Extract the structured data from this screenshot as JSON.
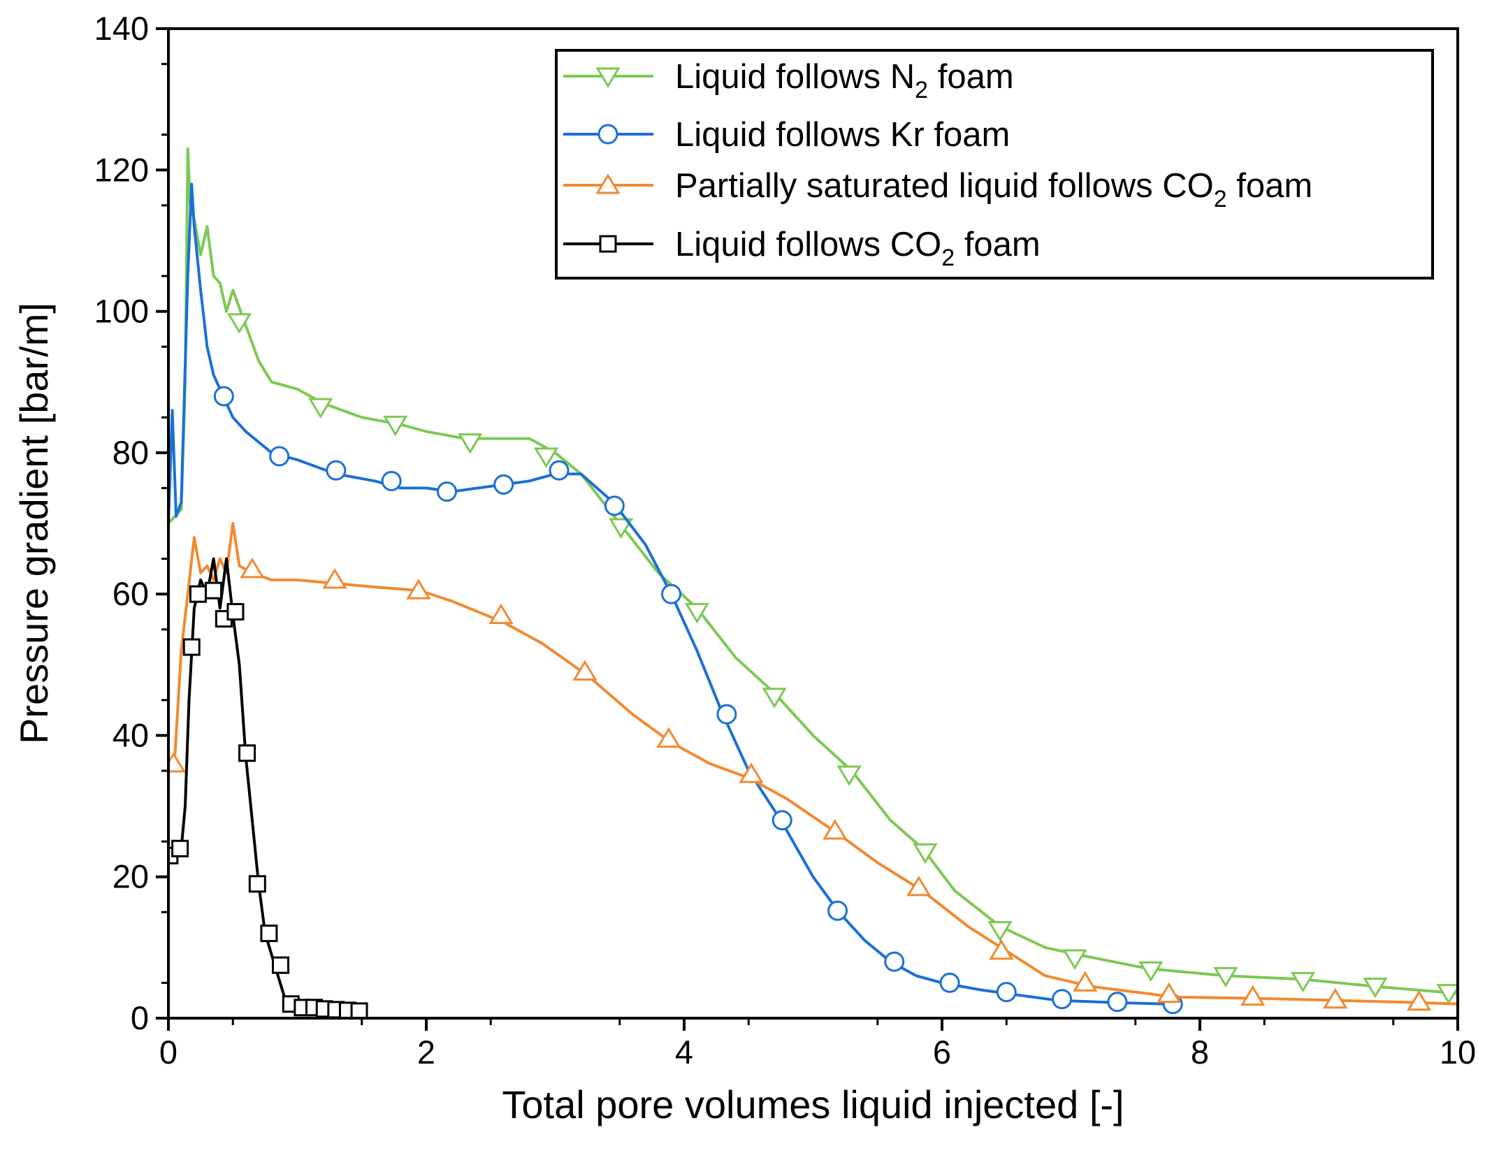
{
  "chart_data": {
    "type": "line",
    "title": "",
    "xlabel": "Total pore volumes liquid injected [-]",
    "ylabel": "Pressure gradient [bar/m]",
    "xlim": [
      0,
      10
    ],
    "ylim": [
      0,
      140
    ],
    "xticks": [
      0,
      2,
      4,
      6,
      8,
      10
    ],
    "yticks": [
      0,
      20,
      40,
      60,
      80,
      100,
      120,
      140
    ],
    "xtick_labels": [
      "0",
      "2",
      "4",
      "6",
      "8",
      "10"
    ],
    "ytick_labels": [
      "0",
      "20",
      "40",
      "60",
      "80",
      "100",
      "120",
      "140"
    ],
    "grid": false,
    "legend_position": "top-right",
    "series": [
      {
        "name": "Liquid follows N2 foam",
        "label_main": "Liquid follows N",
        "label_sub": "2",
        "label_tail": " foam",
        "color": "#7cc954",
        "marker": "triangle-down",
        "x": [
          0,
          0.05,
          0.1,
          0.13,
          0.15,
          0.17,
          0.2,
          0.25,
          0.3,
          0.35,
          0.4,
          0.45,
          0.5,
          0.6,
          0.7,
          0.8,
          1.0,
          1.2,
          1.5,
          1.8,
          2.0,
          2.3,
          2.6,
          2.8,
          3.0,
          3.2,
          3.5,
          3.8,
          4.1,
          4.4,
          4.7,
          5.0,
          5.3,
          5.6,
          5.85,
          6.1,
          6.45,
          6.8,
          7.05,
          7.6,
          8.2,
          8.8,
          9.35,
          10.0
        ],
        "y": [
          70,
          71,
          72,
          90,
          123,
          115,
          113,
          108,
          112,
          105,
          104,
          100,
          103,
          98,
          93,
          90,
          89,
          87,
          85,
          84,
          83,
          82,
          82,
          82,
          80,
          77,
          70,
          63,
          58,
          51,
          46,
          40,
          35,
          28,
          24,
          18,
          13,
          10,
          9,
          7,
          6,
          5.5,
          4.5,
          3.5
        ],
        "marker_x": [
          0.55,
          1.18,
          1.76,
          2.34,
          2.93,
          3.51,
          4.1,
          4.7,
          5.28,
          5.87,
          6.45,
          7.03,
          7.62,
          8.2,
          8.8,
          9.36,
          9.93
        ],
        "marker_y": [
          98.5,
          86.5,
          84,
          81.5,
          79.5,
          69.5,
          57.5,
          45.5,
          34.5,
          23.5,
          12.5,
          8.5,
          6.8,
          6.0,
          5.3,
          4.5,
          3.6
        ]
      },
      {
        "name": "Liquid follows Kr foam",
        "label_main": "Liquid follows Kr foam",
        "label_sub": "",
        "label_tail": "",
        "color": "#1a70d6",
        "marker": "circle",
        "x": [
          0,
          0.03,
          0.06,
          0.1,
          0.15,
          0.18,
          0.2,
          0.25,
          0.3,
          0.35,
          0.4,
          0.5,
          0.6,
          0.8,
          1.0,
          1.3,
          1.6,
          1.8,
          2.0,
          2.2,
          2.4,
          2.6,
          2.8,
          3.0,
          3.2,
          3.45,
          3.7,
          3.9,
          4.1,
          4.3,
          4.5,
          4.75,
          5.0,
          5.2,
          5.4,
          5.6,
          5.8,
          6.0,
          6.3,
          6.5,
          6.9,
          7.35,
          7.76
        ],
        "y": [
          70,
          86,
          71,
          73,
          105,
          118,
          112,
          103,
          95,
          91,
          89,
          85,
          83,
          80,
          79,
          77,
          76,
          75,
          75,
          74.5,
          75,
          75.5,
          76,
          77,
          77,
          73,
          67,
          60,
          52,
          43,
          35,
          28,
          20,
          15,
          11,
          8,
          6,
          5,
          4,
          3.5,
          2.5,
          2.2,
          2.0
        ],
        "marker_x": [
          0.43,
          0.86,
          1.3,
          1.73,
          2.16,
          2.6,
          3.03,
          3.46,
          3.9,
          4.33,
          4.76,
          5.19,
          5.63,
          6.06,
          6.5,
          6.93,
          7.36,
          7.79
        ],
        "marker_y": [
          88,
          79.5,
          77.5,
          76,
          74.5,
          75.5,
          77.5,
          72.5,
          60,
          43,
          28,
          15.2,
          8.0,
          5.0,
          3.7,
          2.7,
          2.3,
          2.0
        ]
      },
      {
        "name": "Partially saturated liquid follows CO2 foam",
        "label_main": "Partially saturated liquid follows CO",
        "label_sub": "2",
        "label_tail": " foam",
        "color": "#f28a30",
        "marker": "triangle-up",
        "x": [
          0,
          0.05,
          0.1,
          0.15,
          0.2,
          0.25,
          0.3,
          0.35,
          0.4,
          0.45,
          0.5,
          0.55,
          0.65,
          0.8,
          1.0,
          1.3,
          1.6,
          1.95,
          2.2,
          2.6,
          2.9,
          3.25,
          3.6,
          3.9,
          4.2,
          4.5,
          4.8,
          5.2,
          5.5,
          5.85,
          6.2,
          6.5,
          6.8,
          7.15,
          7.8,
          8.45,
          9.1,
          9.7,
          10.0
        ],
        "y": [
          35,
          37,
          52,
          60,
          68,
          63,
          64,
          62,
          65,
          63,
          70,
          64,
          63,
          62,
          62,
          61.5,
          61,
          60.5,
          59,
          56,
          53,
          48.5,
          43,
          39,
          36,
          34,
          31,
          26,
          22,
          18,
          13,
          9.5,
          6,
          4.5,
          3,
          2.8,
          2.5,
          2.2,
          2.0
        ],
        "marker_x": [
          0.04,
          0.65,
          1.29,
          1.94,
          2.58,
          3.23,
          3.88,
          4.52,
          5.17,
          5.82,
          6.46,
          7.11,
          7.76,
          8.41,
          9.05,
          9.7
        ],
        "marker_y": [
          36,
          63.5,
          62,
          60.5,
          57,
          49,
          39.5,
          34.5,
          26.5,
          18.5,
          9.5,
          5,
          3.4,
          3.0,
          2.6,
          2.3
        ]
      },
      {
        "name": "Liquid follows CO2 foam",
        "label_main": "Liquid follows CO",
        "label_sub": "2",
        "label_tail": " foam",
        "color": "#000000",
        "marker": "square",
        "x": [
          0,
          0.05,
          0.1,
          0.13,
          0.16,
          0.2,
          0.25,
          0.3,
          0.35,
          0.4,
          0.45,
          0.5,
          0.55,
          0.6,
          0.65,
          0.7,
          0.75,
          0.8,
          0.85,
          0.9,
          0.95,
          1.0,
          1.05,
          1.1,
          1.2,
          1.3,
          1.4,
          1.5
        ],
        "y": [
          23,
          24,
          24,
          30,
          45,
          58,
          62,
          60,
          65,
          58,
          65,
          57,
          50,
          37,
          28,
          19,
          12,
          9,
          6,
          3,
          2,
          1.5,
          1.5,
          1.3,
          1.2,
          1.1,
          1.0,
          1.0
        ],
        "marker_x": [
          0.01,
          0.09,
          0.18,
          0.23,
          0.35,
          0.43,
          0.52,
          0.61,
          0.69,
          0.78,
          0.87,
          0.95,
          1.04,
          1.13,
          1.21,
          1.3,
          1.39,
          1.48
        ],
        "marker_y": [
          23,
          24,
          52.5,
          60,
          60.5,
          56.5,
          57.5,
          37.5,
          19,
          12,
          7.5,
          2,
          1.5,
          1.5,
          1.3,
          1.2,
          1.1,
          1.0
        ]
      }
    ]
  }
}
